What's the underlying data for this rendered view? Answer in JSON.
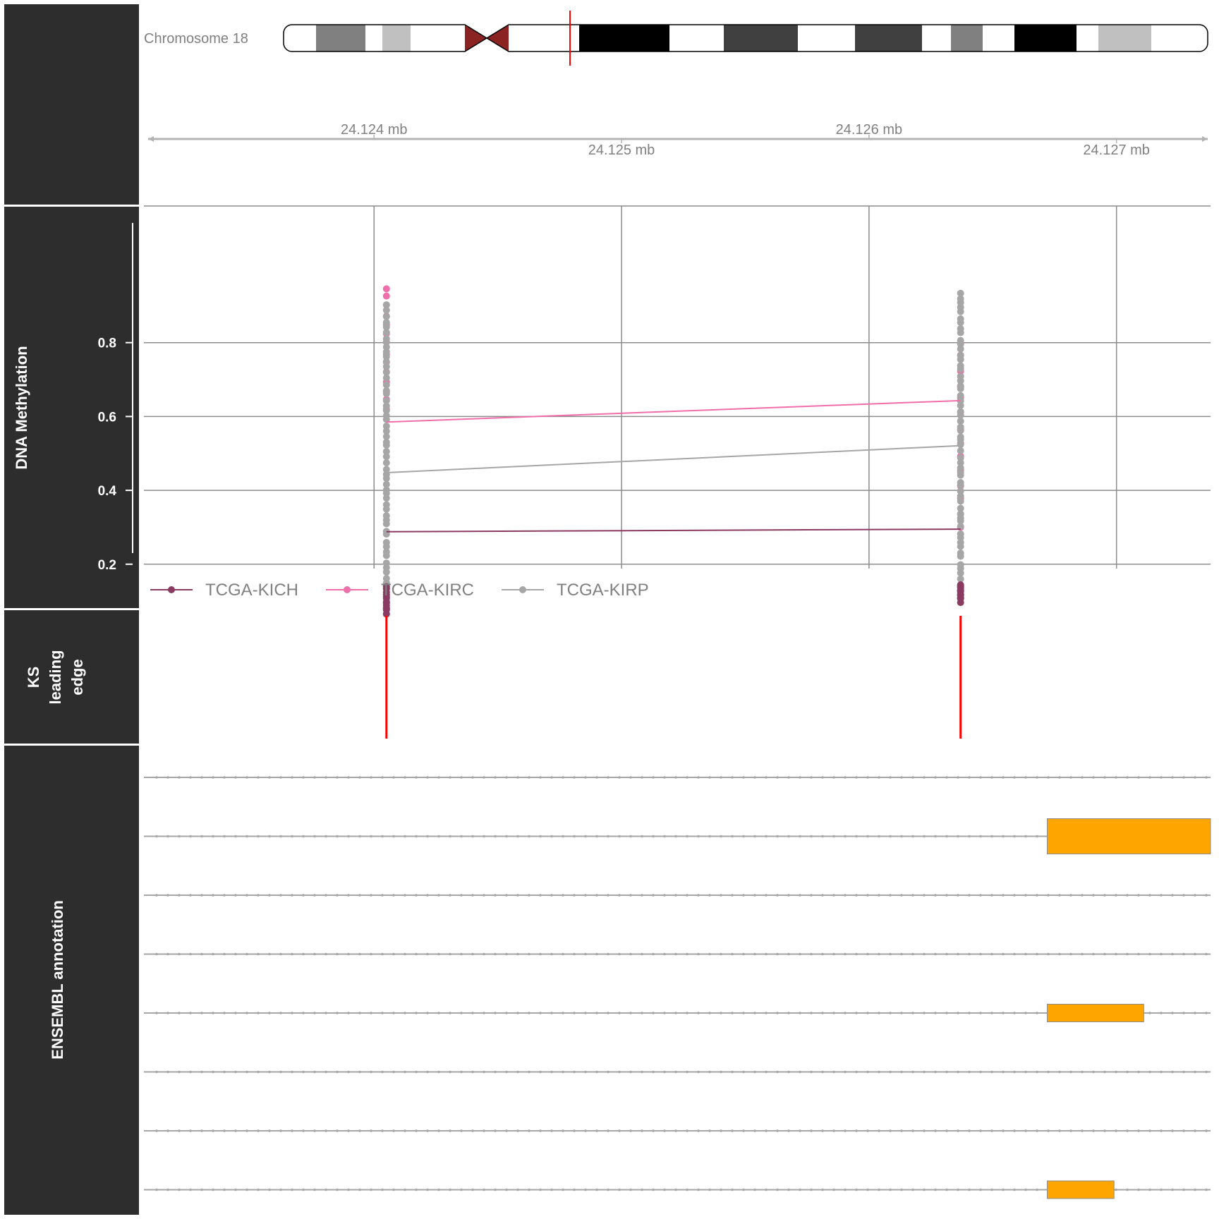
{
  "panels": {
    "methylation_label": "DNA Methylation",
    "ks_label_lines": [
      "KS",
      "leading",
      "edge"
    ],
    "ensembl_label": "ENSEMBL annotation"
  },
  "ideogram": {
    "chromosome_label": "Chromosome 18",
    "centromere_color": "#8B2323",
    "marker_color": "#FF0000"
  },
  "genome_axis": {
    "tick_labels": [
      "24.124 mb",
      "24.125 mb",
      "24.126 mb",
      "24.127 mb"
    ],
    "tick_positions_mb": [
      24.124,
      24.125,
      24.126,
      24.127
    ]
  },
  "chart_data": {
    "type": "scatter",
    "xlabel": "",
    "ylabel": "DNA Methylation",
    "xlim_mb": [
      24.12307,
      24.12738
    ],
    "ylim": [
      0.06,
      0.96
    ],
    "y_ticks": [
      0.2,
      0.4,
      0.6,
      0.8
    ],
    "y_tick_labels": [
      "0.2",
      "0.4",
      "0.6",
      "0.8"
    ],
    "probe_positions_mb": [
      24.12405,
      24.12637
    ],
    "grid": true,
    "legend_position": "bottom",
    "series": [
      {
        "name": "TCGA-KICH",
        "color": "#8B3A62",
        "mean_values": [
          0.288,
          0.295
        ],
        "range_probe1": [
          0.07,
          0.14
        ],
        "range_probe2": [
          0.1,
          0.14
        ]
      },
      {
        "name": "TCGA-KIRC",
        "color": "#F06EAA",
        "mean_values": [
          0.585,
          0.643
        ],
        "range_probe1": [
          0.62,
          0.95
        ],
        "range_probe2": [
          0.3,
          0.8
        ]
      },
      {
        "name": "TCGA-KIRP",
        "color": "#A6A6A6",
        "mean_values": [
          0.448,
          0.521
        ],
        "range_probe1": [
          0.065,
          0.9
        ],
        "range_probe2": [
          0.12,
          0.935
        ]
      }
    ],
    "ks_leading_edge_mb": [
      24.12405,
      24.12637
    ],
    "ks_color": "#FF0000",
    "ensembl_transcripts": [
      {
        "exons_mb": []
      },
      {
        "exons_mb": [
          [
            24.12672,
            24.1274
          ]
        ],
        "tall": true
      },
      {
        "exons_mb": []
      },
      {
        "exons_mb": []
      },
      {
        "exons_mb": [
          [
            24.12672,
            24.12711
          ]
        ]
      },
      {
        "exons_mb": []
      },
      {
        "exons_mb": []
      },
      {
        "exons_mb": [
          [
            24.12672,
            24.12699
          ]
        ]
      }
    ],
    "exon_color": "#FFA500",
    "intron_color": "#A6A6A6"
  }
}
